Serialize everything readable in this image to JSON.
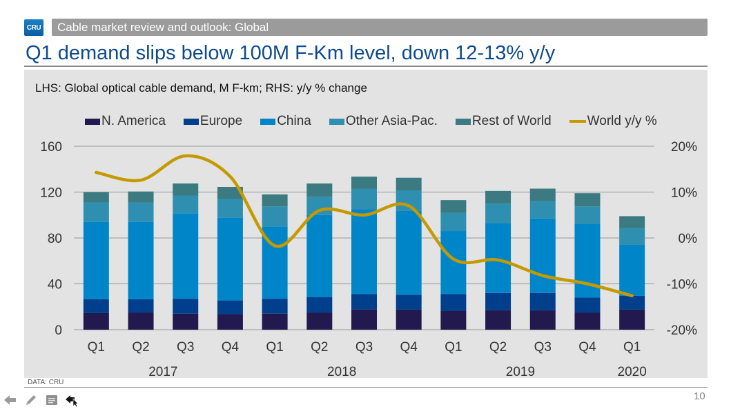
{
  "header": {
    "logo_text": "CRU",
    "section_title": "Cable market review and outlook: Global",
    "slide_title": "Q1 demand slips below 100M F-Km level, down 12-13% y/y"
  },
  "footer": {
    "data_source": "DATA: CRU",
    "page_number": "10"
  },
  "toolbar": {
    "icons": [
      "back-arrow-icon",
      "pen-icon",
      "notes-icon",
      "pointer-icon"
    ]
  },
  "colors": {
    "N. America": "#221a4f",
    "Europe": "#003f8c",
    "China": "#0086c8",
    "Other Asia-Pac.": "#2f8fb0",
    "Rest of World": "#3a7a80",
    "World y/y %": "#c49a00"
  },
  "chart_data": {
    "type": "bar",
    "stacked": true,
    "title": "LHS: Global optical cable demand, M F-km; RHS: y/y % change",
    "categories": [
      "Q1",
      "Q2",
      "Q3",
      "Q4",
      "Q1",
      "Q2",
      "Q3",
      "Q4",
      "Q1",
      "Q2",
      "Q3",
      "Q4",
      "Q1"
    ],
    "category_groups": [
      {
        "label": "2017",
        "span": [
          0,
          3
        ]
      },
      {
        "label": "2018",
        "span": [
          4,
          7
        ]
      },
      {
        "label": "2019",
        "span": [
          8,
          11
        ]
      },
      {
        "label": "2020",
        "span": [
          12,
          12
        ]
      }
    ],
    "series": [
      {
        "name": "N. America",
        "axis": "left",
        "type": "bar",
        "values": [
          14.5,
          15,
          14,
          13.5,
          14,
          15,
          17.5,
          17.5,
          16.5,
          17,
          17,
          15,
          17.5
        ]
      },
      {
        "name": "Europe",
        "axis": "left",
        "type": "bar",
        "values": [
          12,
          11.5,
          13,
          12,
          13,
          13.5,
          13.5,
          13,
          14.5,
          15,
          15,
          13,
          12
        ]
      },
      {
        "name": "China",
        "axis": "left",
        "type": "bar",
        "values": [
          67.5,
          67.5,
          74.5,
          72,
          63,
          71.5,
          74,
          73,
          55,
          61,
          65,
          64.5,
          44.5
        ]
      },
      {
        "name": "Other Asia-Pac.",
        "axis": "left",
        "type": "bar",
        "values": [
          17,
          17,
          15.5,
          16.5,
          17.5,
          16,
          18,
          18,
          16,
          17,
          15,
          15,
          14.5
        ]
      },
      {
        "name": "Rest of World",
        "axis": "left",
        "type": "bar",
        "values": [
          9,
          9.5,
          10.5,
          10.5,
          10.5,
          11.5,
          10.5,
          11,
          11,
          11,
          11,
          11.5,
          10.5
        ]
      },
      {
        "name": "World y/y %",
        "axis": "right",
        "type": "line",
        "values": [
          14.3,
          12.6,
          17.9,
          13.4,
          -1.7,
          6,
          5,
          7,
          -4.6,
          -4.8,
          -8.2,
          -10,
          -12.6
        ]
      }
    ],
    "left_axis": {
      "label": "M F-km",
      "range": [
        0,
        160
      ],
      "ticks": [
        "0",
        "40",
        "80",
        "120",
        "160"
      ]
    },
    "right_axis": {
      "label": "y/y % change",
      "range": [
        -20,
        20
      ],
      "ticks": [
        "-20%",
        "-10%",
        "0%",
        "10%",
        "20%"
      ]
    },
    "grid": true,
    "legend_position": "top"
  }
}
